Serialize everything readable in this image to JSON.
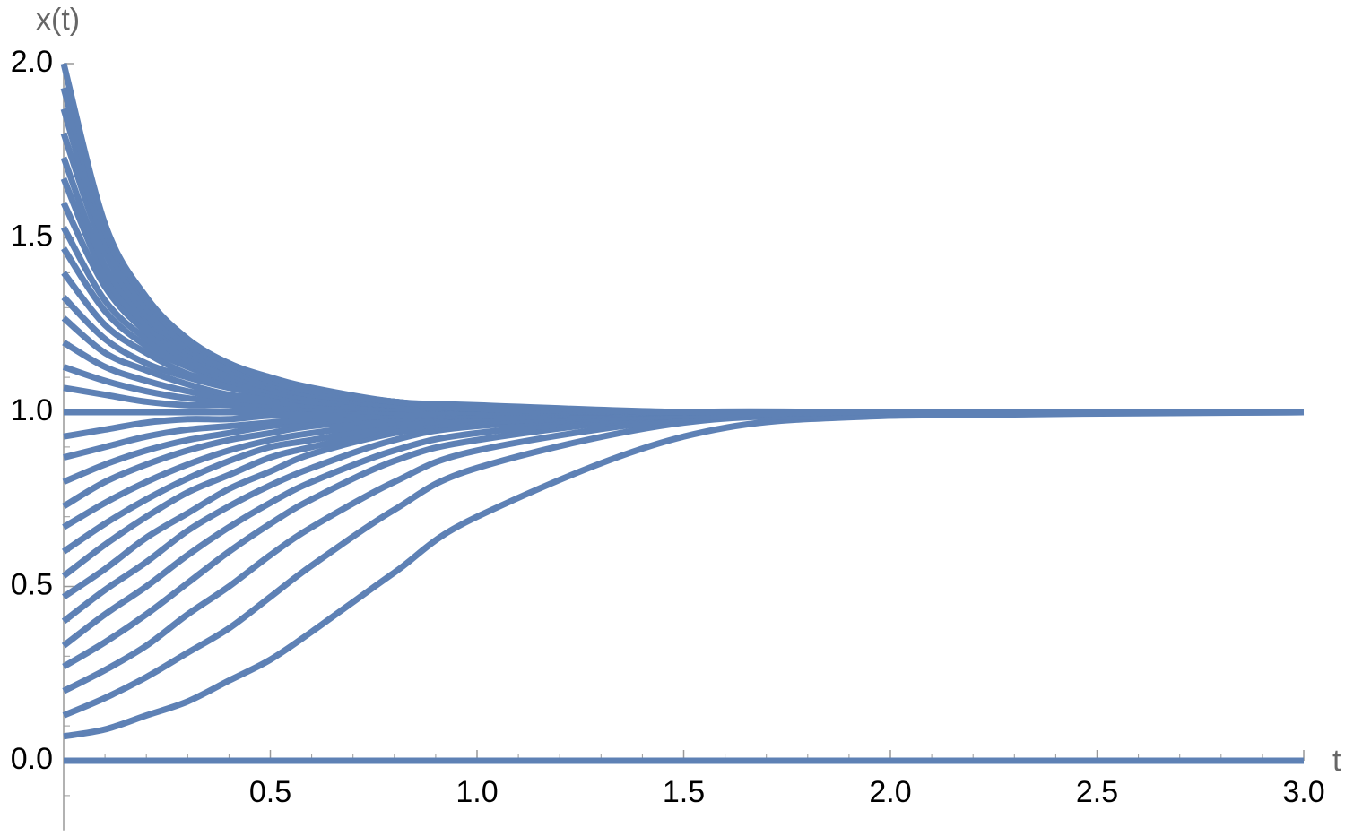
{
  "chart_data": {
    "type": "line",
    "xlabel": "t",
    "ylabel": "x(t)",
    "color": "#5e81b5",
    "xlim": [
      0,
      3
    ],
    "ylim": [
      -0.2,
      2
    ],
    "xticks": [
      {
        "value": 0.5,
        "label": "0.5"
      },
      {
        "value": 1,
        "label": "1.0"
      },
      {
        "value": 1.5,
        "label": "1.5"
      },
      {
        "value": 2,
        "label": "2.0"
      },
      {
        "value": 2.5,
        "label": "2.5"
      },
      {
        "value": 3,
        "label": "3.0"
      }
    ],
    "yticks": [
      {
        "value": 0,
        "label": "0.0"
      },
      {
        "value": 0.5,
        "label": "0.5"
      },
      {
        "value": 1,
        "label": "1.0"
      },
      {
        "value": 1.5,
        "label": "1.5"
      },
      {
        "value": 2,
        "label": "2.0"
      }
    ],
    "xminorticks": [
      0.1,
      0.2,
      0.3,
      0.4,
      0.6,
      0.7,
      0.8,
      0.9,
      1.1,
      1.2,
      1.3,
      1.4,
      1.6,
      1.7,
      1.8,
      1.9,
      2.1,
      2.2,
      2.3,
      2.4,
      2.6,
      2.7,
      2.8,
      2.9
    ],
    "yminorticks": [
      -0.1,
      0.1,
      0.2,
      0.3,
      0.4,
      0.6,
      0.7,
      0.8,
      0.9,
      1.1,
      1.2,
      1.3,
      1.4,
      1.6,
      1.7,
      1.8,
      1.9
    ],
    "x": [
      0,
      0.1,
      0.2,
      0.3,
      0.4,
      0.5,
      0.6,
      0.8,
      1,
      1.5,
      2,
      3
    ],
    "series": [
      {
        "values": [
          0,
          0,
          0,
          0,
          0,
          0,
          0,
          0,
          0,
          0,
          0,
          0
        ]
      },
      {
        "values": [
          0.07,
          0.09,
          0.13,
          0.17,
          0.23,
          0.29,
          0.37,
          0.54,
          0.7,
          0.93,
          0.99,
          1
        ]
      },
      {
        "values": [
          0.13,
          0.18,
          0.24,
          0.31,
          0.38,
          0.47,
          0.56,
          0.72,
          0.84,
          0.97,
          0.99,
          1
        ]
      },
      {
        "values": [
          0.2,
          0.26,
          0.33,
          0.42,
          0.5,
          0.59,
          0.67,
          0.8,
          0.89,
          0.98,
          1,
          1
        ]
      },
      {
        "values": [
          0.27,
          0.34,
          0.42,
          0.51,
          0.6,
          0.68,
          0.75,
          0.86,
          0.92,
          0.99,
          1,
          1
        ]
      },
      {
        "values": [
          0.33,
          0.42,
          0.5,
          0.59,
          0.67,
          0.74,
          0.8,
          0.89,
          0.94,
          0.99,
          1,
          1
        ]
      },
      {
        "values": [
          0.4,
          0.49,
          0.57,
          0.66,
          0.73,
          0.79,
          0.84,
          0.92,
          0.96,
          0.99,
          1,
          1
        ]
      },
      {
        "values": [
          0.47,
          0.55,
          0.64,
          0.71,
          0.78,
          0.83,
          0.88,
          0.94,
          0.97,
          0.99,
          1,
          1
        ]
      },
      {
        "values": [
          0.53,
          0.62,
          0.7,
          0.77,
          0.82,
          0.87,
          0.9,
          0.95,
          0.97,
          1,
          1,
          1
        ]
      },
      {
        "values": [
          0.6,
          0.68,
          0.75,
          0.81,
          0.86,
          0.9,
          0.92,
          0.96,
          0.98,
          1,
          1,
          1
        ]
      },
      {
        "values": [
          0.67,
          0.74,
          0.8,
          0.85,
          0.89,
          0.92,
          0.94,
          0.97,
          0.99,
          1,
          1,
          1
        ]
      },
      {
        "values": [
          0.73,
          0.8,
          0.85,
          0.89,
          0.92,
          0.94,
          0.96,
          0.98,
          0.99,
          1,
          1,
          1
        ]
      },
      {
        "values": [
          0.8,
          0.85,
          0.89,
          0.92,
          0.94,
          0.96,
          0.97,
          0.99,
          0.99,
          1,
          1,
          1
        ]
      },
      {
        "values": [
          0.87,
          0.9,
          0.93,
          0.95,
          0.96,
          0.97,
          0.98,
          0.99,
          1,
          1,
          1,
          1
        ]
      },
      {
        "values": [
          0.93,
          0.95,
          0.97,
          0.98,
          0.98,
          0.99,
          0.99,
          1,
          1,
          1,
          1,
          1
        ]
      },
      {
        "values": [
          1,
          1,
          1,
          1,
          1,
          1,
          1,
          1,
          1,
          1,
          1,
          1
        ]
      },
      {
        "values": [
          1.07,
          1.05,
          1.03,
          1.02,
          1.02,
          1.01,
          1.01,
          1,
          1,
          1,
          1,
          1
        ]
      },
      {
        "values": [
          1.13,
          1.09,
          1.06,
          1.04,
          1.03,
          1.02,
          1.01,
          1.01,
          1,
          1,
          1,
          1
        ]
      },
      {
        "values": [
          1.2,
          1.13,
          1.09,
          1.06,
          1.04,
          1.03,
          1.02,
          1.01,
          1.01,
          1,
          1,
          1
        ]
      },
      {
        "values": [
          1.27,
          1.17,
          1.12,
          1.08,
          1.05,
          1.04,
          1.03,
          1.01,
          1.01,
          1,
          1,
          1
        ]
      },
      {
        "values": [
          1.33,
          1.21,
          1.14,
          1.1,
          1.07,
          1.05,
          1.03,
          1.02,
          1.01,
          1,
          1,
          1
        ]
      },
      {
        "values": [
          1.4,
          1.25,
          1.17,
          1.11,
          1.08,
          1.05,
          1.04,
          1.02,
          1.01,
          1,
          1,
          1
        ]
      },
      {
        "values": [
          1.47,
          1.29,
          1.19,
          1.13,
          1.09,
          1.06,
          1.04,
          1.02,
          1.01,
          1,
          1,
          1
        ]
      },
      {
        "values": [
          1.53,
          1.32,
          1.21,
          1.14,
          1.09,
          1.06,
          1.04,
          1.02,
          1.01,
          1,
          1,
          1
        ]
      },
      {
        "values": [
          1.6,
          1.36,
          1.23,
          1.15,
          1.1,
          1.07,
          1.05,
          1.02,
          1.01,
          1,
          1,
          1
        ]
      },
      {
        "values": [
          1.67,
          1.39,
          1.25,
          1.16,
          1.11,
          1.07,
          1.05,
          1.02,
          1.01,
          1,
          1,
          1
        ]
      },
      {
        "values": [
          1.73,
          1.42,
          1.27,
          1.17,
          1.12,
          1.08,
          1.05,
          1.03,
          1.01,
          1,
          1,
          1
        ]
      },
      {
        "values": [
          1.8,
          1.46,
          1.28,
          1.18,
          1.12,
          1.08,
          1.06,
          1.03,
          1.01,
          1,
          1,
          1
        ]
      },
      {
        "values": [
          1.87,
          1.49,
          1.3,
          1.19,
          1.13,
          1.09,
          1.06,
          1.03,
          1.01,
          1,
          1,
          1
        ]
      },
      {
        "values": [
          1.93,
          1.52,
          1.32,
          1.2,
          1.14,
          1.09,
          1.06,
          1.03,
          1.01,
          1,
          1,
          1
        ]
      },
      {
        "values": [
          2,
          1.54,
          1.33,
          1.21,
          1.14,
          1.1,
          1.07,
          1.03,
          1.02,
          1,
          1,
          1
        ]
      }
    ]
  }
}
